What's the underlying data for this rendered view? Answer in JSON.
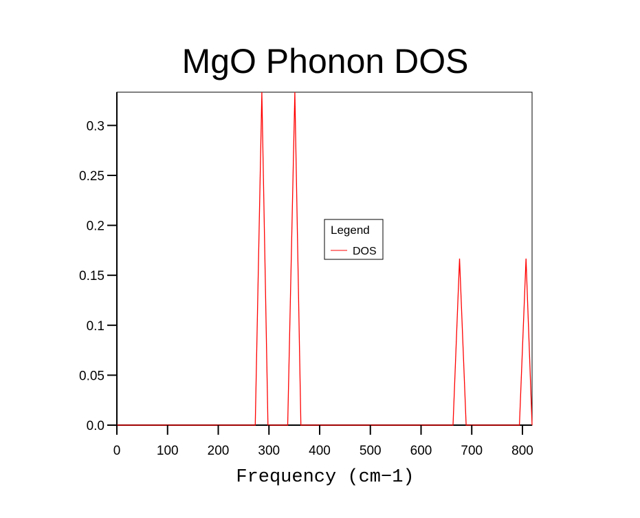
{
  "chart_data": {
    "type": "line",
    "title": "MgO Phonon DOS",
    "xlabel": "Frequency (cm−1)",
    "ylabel": "",
    "xlim": [
      0,
      819
    ],
    "ylim": [
      0,
      0.3333
    ],
    "xticks": [
      0,
      100,
      200,
      300,
      400,
      500,
      600,
      700,
      800
    ],
    "xtick_labels": [
      "0",
      "100",
      "200",
      "300",
      "400",
      "500",
      "600",
      "700",
      "800"
    ],
    "yticks": [
      0,
      0.05,
      0.1,
      0.15,
      0.2,
      0.25,
      0.3
    ],
    "ytick_labels": [
      "0.0",
      "0.05",
      "0.1",
      "0.15",
      "0.2",
      "0.25",
      "0.3"
    ],
    "grid": false,
    "legend": {
      "title": "Legend",
      "placement": "center"
    },
    "series": [
      {
        "name": "DOS",
        "color": "#ff0000",
        "x": [
          0,
          273,
          286,
          298,
          337,
          351,
          363,
          663,
          676,
          689,
          794,
          807,
          819
        ],
        "y": [
          0,
          0,
          0.3333,
          0,
          0,
          0.3333,
          0,
          0,
          0.1667,
          0,
          0,
          0.1667,
          0
        ]
      }
    ]
  }
}
